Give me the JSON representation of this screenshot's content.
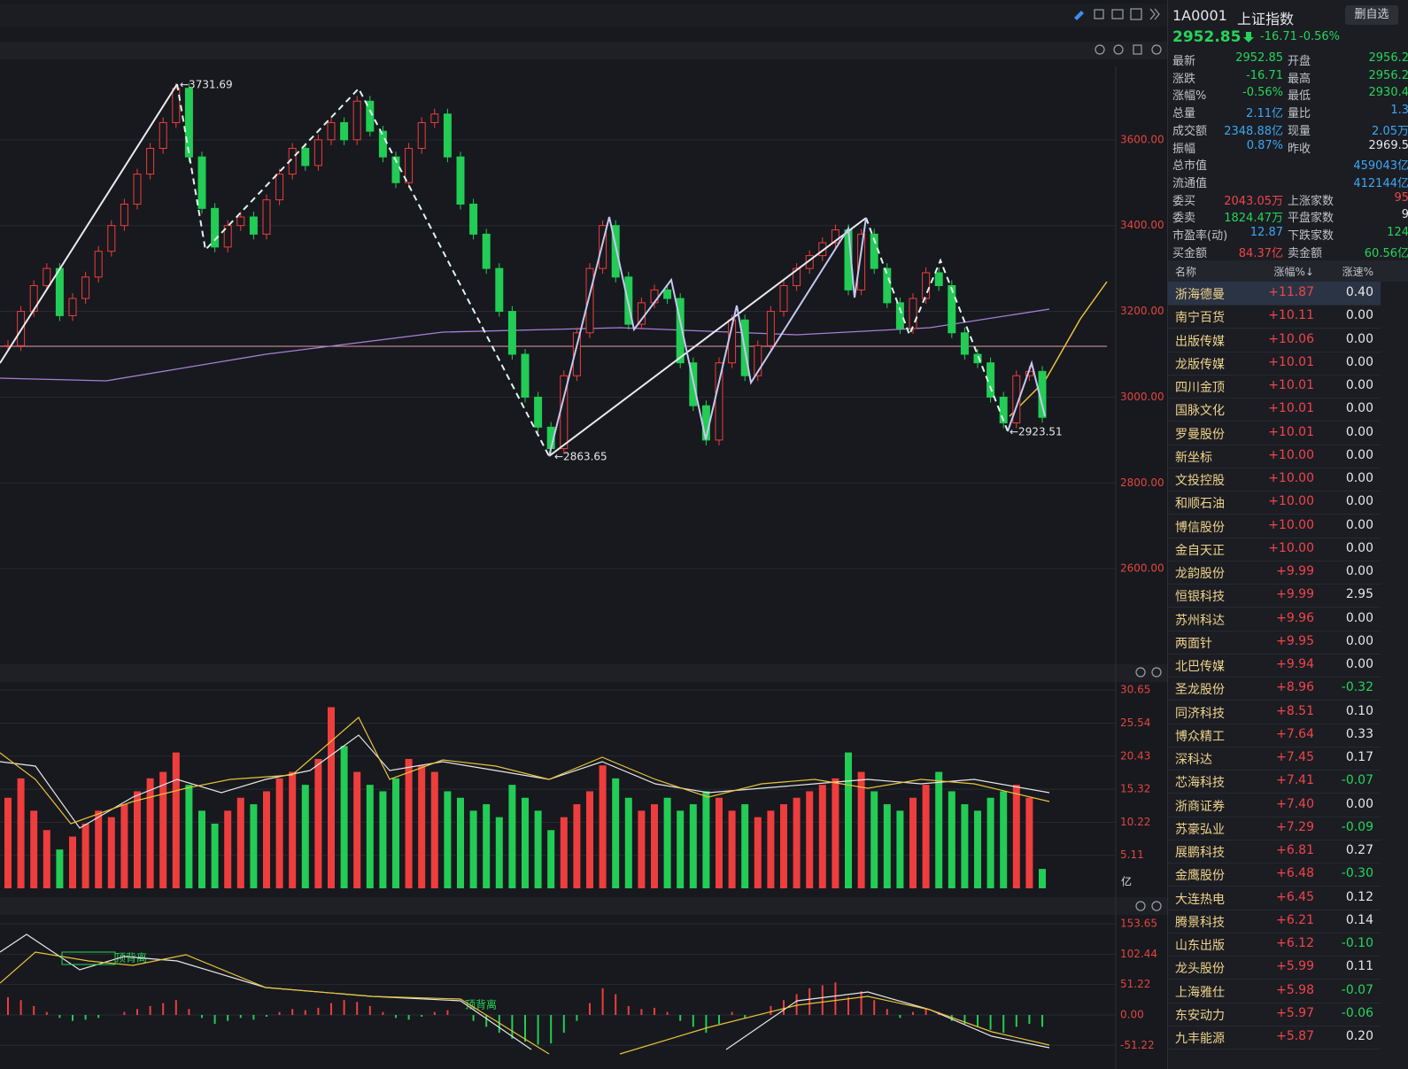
{
  "chart_data": {
    "type": "candlestick",
    "up_color": "#ee3d3d",
    "down_color": "#22cc55",
    "close": [
      3120,
      3200,
      3260,
      3300,
      3190,
      3230,
      3280,
      3340,
      3400,
      3450,
      3520,
      3580,
      3640,
      3720,
      3560,
      3440,
      3350,
      3400,
      3420,
      3380,
      3460,
      3520,
      3580,
      3540,
      3600,
      3640,
      3600,
      3690,
      3620,
      3560,
      3500,
      3580,
      3640,
      3660,
      3560,
      3450,
      3380,
      3300,
      3200,
      3100,
      3000,
      2930,
      2880,
      3050,
      3150,
      3300,
      3400,
      3280,
      3170,
      3220,
      3250,
      3230,
      3080,
      2980,
      2900,
      3080,
      3180,
      3050,
      3120,
      3200,
      3260,
      3300,
      3330,
      3360,
      3390,
      3250,
      3380,
      3300,
      3220,
      3160,
      3230,
      3290,
      3260,
      3150,
      3100,
      3080,
      3000,
      2940,
      3050,
      3060,
      2952.85
    ],
    "ylim": [
      2398,
      3771
    ],
    "yticks": [
      {
        "value": 3600,
        "label": "3600.00"
      },
      {
        "value": 3400,
        "label": "3400.00"
      },
      {
        "value": 3200,
        "label": "3200.00"
      },
      {
        "value": 3000,
        "label": "3000.00"
      },
      {
        "value": 2800,
        "label": "2800.00"
      },
      {
        "value": 2600,
        "label": "2600.00"
      }
    ],
    "annotations": [
      "←3731.69",
      "←2863.65",
      "←2923.51"
    ],
    "volume": {
      "unit": "亿",
      "ylim": [
        0,
        31.9
      ],
      "yticks": [
        30.65,
        25.54,
        20.43,
        15.32,
        10.22,
        5.11
      ],
      "values": [
        14,
        17,
        12,
        9,
        6,
        8,
        10,
        12,
        11,
        13,
        15,
        17,
        18,
        21,
        16,
        12,
        10,
        12,
        14,
        13,
        15,
        17,
        18,
        16,
        20,
        28,
        22,
        18,
        16,
        15,
        17,
        20,
        19,
        18,
        15,
        14,
        12,
        13,
        11,
        16,
        14,
        12,
        9,
        11,
        13,
        15,
        19,
        17,
        14,
        12,
        13,
        14,
        12,
        13,
        15,
        14,
        12,
        13,
        11,
        12,
        13,
        14,
        15,
        16,
        17,
        21,
        18,
        15,
        13,
        12,
        14,
        16,
        18,
        15,
        13,
        12,
        14,
        15,
        16,
        14,
        3
      ]
    },
    "macd": {
      "ylim": [
        -65.7,
        165.6
      ],
      "yticks": [
        153.65,
        102.44,
        51.22,
        {
          "value": 0,
          "label": "0.00"
        },
        -51.22
      ],
      "annotations": [
        "顶背离",
        "顶背离"
      ],
      "hist": [
        30,
        25,
        15,
        5,
        -5,
        -10,
        -8,
        -5,
        0,
        5,
        10,
        15,
        20,
        25,
        10,
        -5,
        -15,
        -10,
        -5,
        -8,
        -3,
        5,
        10,
        8,
        12,
        20,
        25,
        22,
        15,
        5,
        -5,
        -8,
        -3,
        5,
        8,
        0,
        -10,
        -20,
        -30,
        -40,
        -45,
        -50,
        -48,
        -30,
        -10,
        20,
        45,
        35,
        15,
        10,
        12,
        5,
        -10,
        -20,
        -30,
        -15,
        5,
        -5,
        0,
        15,
        25,
        35,
        45,
        50,
        55,
        30,
        40,
        25,
        10,
        -5,
        5,
        10,
        5,
        -10,
        -15,
        -20,
        -25,
        -30,
        -20,
        -15,
        -20
      ]
    }
  },
  "quote": {
    "code": "1A0001",
    "name": "上证指数",
    "button": "删自选",
    "price": "2952.85",
    "change": "-16.71",
    "change_pct": "-0.56%",
    "rows": [
      [
        "最新",
        "2952.85",
        "开盘",
        "2956.2"
      ],
      [
        "涨跌",
        "-16.71",
        "最高",
        "2956.2"
      ],
      [
        "涨幅%",
        "-0.56%",
        "最低",
        "2930.4"
      ],
      [
        "总量",
        "2.11亿",
        "量比",
        "1.3"
      ],
      [
        "成交额",
        "2348.88亿",
        "现量",
        "2.05万"
      ],
      [
        "振幅",
        "0.87%",
        "昨收",
        "2969.5"
      ],
      [
        "总市值",
        "",
        "",
        "459043亿"
      ],
      [
        "流通值",
        "",
        "",
        "412144亿"
      ],
      [
        "委买",
        "2043.05万",
        "上涨家数",
        "95"
      ],
      [
        "委卖",
        "1824.47万",
        "平盘家数",
        "9"
      ],
      [
        "市盈率(动)",
        "12.87",
        "下跌家数",
        "124"
      ],
      [
        "买金额",
        "84.37亿",
        "卖金额",
        "60.56亿"
      ]
    ]
  },
  "stock_list": {
    "header": [
      "名称",
      "涨幅%↓",
      "涨速%"
    ],
    "rows": [
      [
        "浙海德曼",
        "+11.87",
        "0.40"
      ],
      [
        "南宁百货",
        "+10.11",
        "0.00"
      ],
      [
        "出版传媒",
        "+10.06",
        "0.00"
      ],
      [
        "龙版传媒",
        "+10.01",
        "0.00"
      ],
      [
        "四川金顶",
        "+10.01",
        "0.00"
      ],
      [
        "国脉文化",
        "+10.01",
        "0.00"
      ],
      [
        "罗曼股份",
        "+10.01",
        "0.00"
      ],
      [
        "新坐标",
        "+10.00",
        "0.00"
      ],
      [
        "文投控股",
        "+10.00",
        "0.00"
      ],
      [
        "和顺石油",
        "+10.00",
        "0.00"
      ],
      [
        "博信股份",
        "+10.00",
        "0.00"
      ],
      [
        "金自天正",
        "+10.00",
        "0.00"
      ],
      [
        "龙韵股份",
        "+9.99",
        "0.00"
      ],
      [
        "恒银科技",
        "+9.99",
        "2.95"
      ],
      [
        "苏州科达",
        "+9.96",
        "0.00"
      ],
      [
        "两面针",
        "+9.95",
        "0.00"
      ],
      [
        "北巴传媒",
        "+9.94",
        "0.00"
      ],
      [
        "圣龙股份",
        "+8.96",
        "-0.32"
      ],
      [
        "同济科技",
        "+8.51",
        "0.10"
      ],
      [
        "博众精工",
        "+7.64",
        "0.33"
      ],
      [
        "深科达",
        "+7.45",
        "0.17"
      ],
      [
        "芯海科技",
        "+7.41",
        "-0.07"
      ],
      [
        "浙商证券",
        "+7.40",
        "0.00"
      ],
      [
        "苏豪弘业",
        "+7.29",
        "-0.09"
      ],
      [
        "展鹏科技",
        "+6.81",
        "0.27"
      ],
      [
        "金鹰股份",
        "+6.48",
        "-0.30"
      ],
      [
        "大连热电",
        "+6.45",
        "0.12"
      ],
      [
        "腾景科技",
        "+6.21",
        "0.14"
      ],
      [
        "山东出版",
        "+6.12",
        "-0.10"
      ],
      [
        "龙头股份",
        "+5.99",
        "0.11"
      ],
      [
        "上海雅仕",
        "+5.98",
        "-0.07"
      ],
      [
        "东安动力",
        "+5.97",
        "-0.06"
      ],
      [
        "九丰能源",
        "+5.87",
        "0.20"
      ]
    ]
  }
}
